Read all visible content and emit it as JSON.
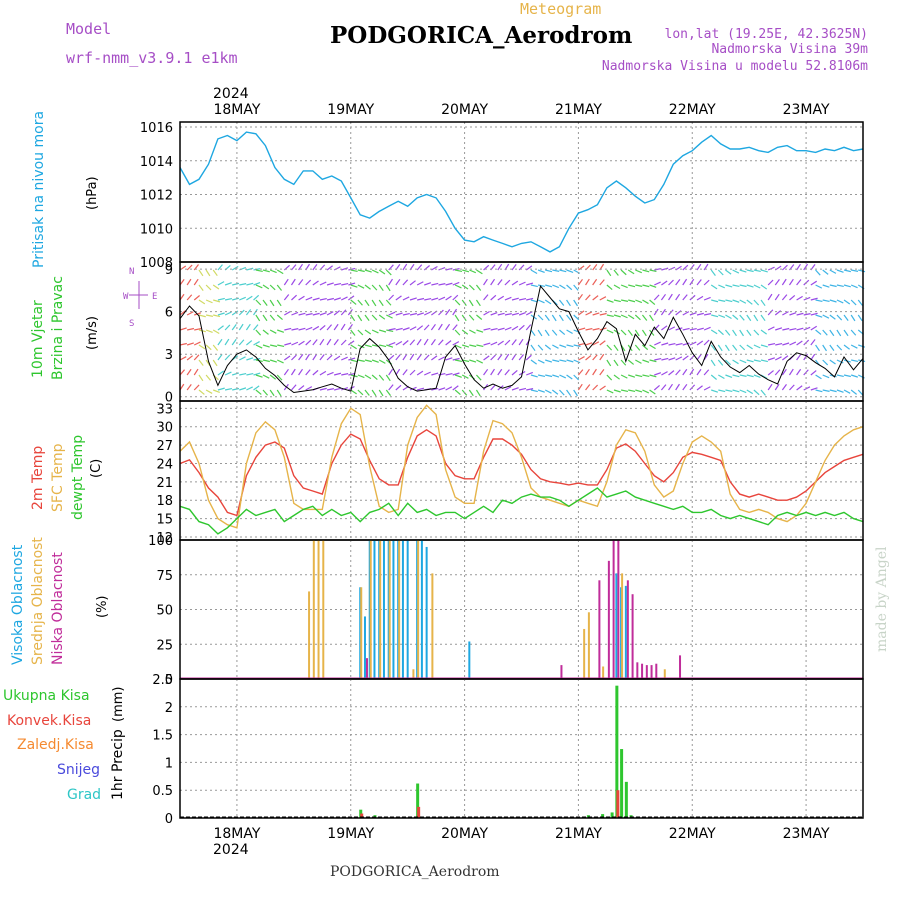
{
  "header": {
    "model_label": "Model",
    "model_name": "wrf-nmm_v3.9.1 e1km",
    "meteogram_label": "Meteogram",
    "station": "PODGORICA_Aerodrom",
    "lonlat": "lon,lat (19.25E, 42.3625N)",
    "altitude": "Nadmorska Visina 39m",
    "model_altitude": "Nadmorska Visina u modelu 52.8106m"
  },
  "footer": {
    "station": "PODGORICA_Aerodrom",
    "credit": "made by Angel"
  },
  "colors": {
    "pressure": "#1ea7e1",
    "temp2m": "#e8453c",
    "sfc": "#e6b44a",
    "dew": "#2ec62e",
    "high_cloud": "#1ea7e1",
    "mid_cloud": "#e6b44a",
    "low_cloud": "#c02d9a",
    "total_rain": "#2ec62e",
    "conv_rain": "#e8453c",
    "freezing": "#f58a30",
    "snow": "#4a4adc",
    "graupel": "#2ec6c6",
    "wind_purple": "#8a2be2"
  },
  "chart_data": [
    {
      "type": "line",
      "panel": "pressure",
      "ylabel": "Pritisak na nivou mora",
      "unit": "(hPa)",
      "ylim": [
        1008,
        1016.3
      ],
      "yticks": [
        1008,
        1010,
        1012,
        1014,
        1016
      ],
      "series": [
        {
          "color_key": "pressure",
          "x": [
            0,
            2,
            4,
            6,
            8,
            10,
            12,
            14,
            16,
            18,
            20,
            22,
            24,
            26,
            28,
            30,
            32,
            34,
            36,
            38,
            40,
            42,
            44,
            46,
            48,
            50,
            52,
            54,
            56,
            58,
            60,
            62,
            64,
            66,
            68,
            70,
            72,
            74,
            76,
            78,
            80,
            82,
            84,
            86,
            88,
            90,
            92,
            94,
            96,
            98,
            100,
            102,
            104,
            106,
            108,
            110,
            112,
            114,
            116,
            118,
            120,
            122,
            124,
            126,
            128,
            130,
            132,
            134,
            136,
            138,
            140,
            142,
            144
          ],
          "values": [
            1013.6,
            1012.6,
            1012.9,
            1013.8,
            1015.3,
            1015.5,
            1015.2,
            1015.7,
            1015.6,
            1014.9,
            1013.6,
            1012.9,
            1012.6,
            1013.4,
            1013.4,
            1012.9,
            1013.1,
            1012.8,
            1011.8,
            1010.8,
            1010.6,
            1011.0,
            1011.3,
            1011.6,
            1011.3,
            1011.8,
            1012.0,
            1011.8,
            1011.0,
            1010.0,
            1009.3,
            1009.2,
            1009.5,
            1009.3,
            1009.1,
            1008.9,
            1009.1,
            1009.2,
            1008.9,
            1008.6,
            1008.9,
            1010.0,
            1010.9,
            1011.1,
            1011.4,
            1012.4,
            1012.8,
            1012.4,
            1011.9,
            1011.5,
            1011.7,
            1012.6,
            1013.8,
            1014.3,
            1014.6,
            1015.1,
            1015.5,
            1015.0,
            1014.7,
            1014.7,
            1014.8,
            1014.6,
            1014.5,
            1014.8,
            1014.9,
            1014.6,
            1014.6,
            1014.5,
            1014.7,
            1014.6,
            1014.8,
            1014.6,
            1014.7
          ]
        }
      ]
    },
    {
      "type": "line",
      "panel": "wind",
      "ylabel": "10m Vjetar Brzina i Pravac",
      "unit": "(m/s)",
      "compass": {
        "n": "N",
        "s": "S",
        "w": "W",
        "e": "E"
      },
      "ylim": [
        -0.3,
        9.5
      ],
      "yticks": [
        0,
        3,
        6,
        9
      ],
      "series": [
        {
          "name": "speed",
          "x": [
            0,
            2,
            4,
            6,
            8,
            10,
            12,
            14,
            16,
            18,
            20,
            22,
            24,
            26,
            28,
            30,
            32,
            34,
            36,
            38,
            40,
            42,
            44,
            46,
            48,
            50,
            52,
            54,
            56,
            58,
            60,
            62,
            64,
            66,
            68,
            70,
            72,
            74,
            76,
            78,
            80,
            82,
            84,
            86,
            88,
            90,
            92,
            94,
            96,
            98,
            100,
            102,
            104,
            106,
            108,
            110,
            112,
            114,
            116,
            118,
            120,
            122,
            124,
            126,
            128,
            130,
            132,
            134,
            136,
            138,
            140,
            142,
            144
          ],
          "values": [
            5.5,
            6.4,
            5.7,
            2.5,
            0.8,
            2.2,
            3.0,
            3.3,
            2.8,
            2.0,
            1.5,
            0.8,
            0.3,
            0.4,
            0.5,
            0.7,
            0.9,
            0.6,
            0.4,
            3.4,
            4.1,
            3.5,
            2.6,
            1.3,
            0.7,
            0.4,
            0.5,
            0.6,
            2.8,
            3.6,
            2.3,
            1.2,
            0.6,
            0.9,
            0.6,
            0.8,
            1.4,
            4.7,
            7.8,
            7.0,
            6.2,
            6.0,
            4.6,
            3.3,
            4.1,
            5.3,
            4.8,
            2.5,
            4.4,
            3.6,
            4.9,
            4.1,
            5.6,
            4.4,
            3.1,
            2.2,
            3.9,
            2.8,
            2.1,
            1.7,
            2.2,
            1.6,
            1.2,
            0.9,
            2.5,
            3.1,
            2.9,
            2.4,
            2.0,
            1.4,
            2.8,
            1.9,
            2.7
          ]
        }
      ]
    },
    {
      "type": "line",
      "panel": "temperature",
      "ylabel": [
        "2m Temp",
        "SFC Temp",
        "dewpt Temp"
      ],
      "unit": "(C)",
      "ylim": [
        11.5,
        34.2
      ],
      "yticks": [
        12,
        15,
        18,
        21,
        24,
        27,
        30,
        33
      ],
      "series": [
        {
          "name": "2m Temp",
          "color_key": "temp2m",
          "x": [
            0,
            2,
            4,
            6,
            8,
            10,
            12,
            14,
            16,
            18,
            20,
            22,
            24,
            26,
            28,
            30,
            32,
            34,
            36,
            38,
            40,
            42,
            44,
            46,
            48,
            50,
            52,
            54,
            56,
            58,
            60,
            62,
            64,
            66,
            68,
            70,
            72,
            74,
            76,
            78,
            80,
            82,
            84,
            86,
            88,
            90,
            92,
            94,
            96,
            98,
            100,
            102,
            104,
            106,
            108,
            110,
            112,
            114,
            116,
            118,
            120,
            122,
            124,
            126,
            128,
            130,
            132,
            134,
            136,
            138,
            140,
            142,
            144
          ],
          "values": [
            24.0,
            24.6,
            22.5,
            20.0,
            18.5,
            16.0,
            15.5,
            22.0,
            25.0,
            27.0,
            27.5,
            26.5,
            22.0,
            20.0,
            19.5,
            19.0,
            24.0,
            27.0,
            28.8,
            28.0,
            24.5,
            21.5,
            20.5,
            20.5,
            25.0,
            28.5,
            29.5,
            28.5,
            24.0,
            22.0,
            21.5,
            21.5,
            25.0,
            28.0,
            28.0,
            27.0,
            25.5,
            23.0,
            21.5,
            21.0,
            20.8,
            20.5,
            20.8,
            20.5,
            20.5,
            23.0,
            26.5,
            27.2,
            26.0,
            24.0,
            22.0,
            21.0,
            22.5,
            25.0,
            25.8,
            25.5,
            25.0,
            24.5,
            21.0,
            19.0,
            18.5,
            19.0,
            18.5,
            18.0,
            18.0,
            18.5,
            19.5,
            21.0,
            22.5,
            23.5,
            24.5,
            25.0,
            25.5
          ]
        },
        {
          "name": "SFC Temp",
          "color_key": "sfc",
          "x": [
            0,
            2,
            4,
            6,
            8,
            10,
            12,
            14,
            16,
            18,
            20,
            22,
            24,
            26,
            28,
            30,
            32,
            34,
            36,
            38,
            40,
            42,
            44,
            46,
            48,
            50,
            52,
            54,
            56,
            58,
            60,
            62,
            64,
            66,
            68,
            70,
            72,
            74,
            76,
            78,
            80,
            82,
            84,
            86,
            88,
            90,
            92,
            94,
            96,
            98,
            100,
            102,
            104,
            106,
            108,
            110,
            112,
            114,
            116,
            118,
            120,
            122,
            124,
            126,
            128,
            130,
            132,
            134,
            136,
            138,
            140,
            142,
            144
          ],
          "values": [
            26.0,
            27.5,
            24.0,
            18.0,
            15.0,
            14.0,
            13.5,
            24.0,
            29.0,
            30.8,
            29.5,
            25.0,
            17.5,
            16.5,
            16.5,
            16.5,
            25.0,
            30.5,
            33.0,
            32.0,
            23.5,
            17.0,
            16.0,
            16.5,
            27.0,
            31.5,
            33.5,
            32.0,
            23.0,
            18.5,
            17.5,
            17.5,
            26.0,
            31.0,
            30.5,
            29.0,
            25.0,
            20.0,
            18.5,
            18.0,
            17.5,
            17.0,
            18.0,
            17.5,
            17.0,
            21.0,
            27.0,
            29.5,
            29.0,
            26.0,
            20.5,
            18.5,
            19.5,
            24.0,
            27.5,
            28.5,
            27.5,
            26.0,
            19.0,
            16.5,
            16.0,
            16.5,
            16.0,
            15.0,
            14.5,
            15.5,
            17.5,
            21.0,
            24.5,
            27.0,
            28.5,
            29.5,
            30.0
          ]
        },
        {
          "name": "dewpt Temp",
          "color_key": "dew",
          "x": [
            0,
            2,
            4,
            6,
            8,
            10,
            12,
            14,
            16,
            18,
            20,
            22,
            24,
            26,
            28,
            30,
            32,
            34,
            36,
            38,
            40,
            42,
            44,
            46,
            48,
            50,
            52,
            54,
            56,
            58,
            60,
            62,
            64,
            66,
            68,
            70,
            72,
            74,
            76,
            78,
            80,
            82,
            84,
            86,
            88,
            90,
            92,
            94,
            96,
            98,
            100,
            102,
            104,
            106,
            108,
            110,
            112,
            114,
            116,
            118,
            120,
            122,
            124,
            126,
            128,
            130,
            132,
            134,
            136,
            138,
            140,
            142,
            144
          ],
          "values": [
            17.0,
            16.5,
            14.5,
            14.0,
            12.5,
            13.5,
            15.0,
            16.5,
            15.5,
            16.0,
            16.5,
            14.5,
            15.5,
            16.5,
            17.0,
            15.5,
            16.5,
            15.5,
            16.0,
            14.5,
            16.0,
            16.5,
            17.5,
            15.5,
            17.5,
            16.0,
            16.5,
            15.5,
            16.0,
            16.0,
            15.0,
            16.0,
            17.0,
            16.0,
            18.0,
            17.5,
            18.5,
            19.0,
            18.5,
            18.5,
            18.0,
            17.0,
            18.0,
            19.0,
            20.0,
            18.5,
            19.0,
            19.5,
            18.5,
            18.0,
            17.5,
            17.0,
            16.5,
            17.0,
            16.0,
            16.0,
            16.5,
            15.5,
            15.0,
            15.5,
            15.0,
            14.5,
            14.0,
            15.5,
            16.0,
            15.5,
            16.0,
            15.5,
            16.0,
            15.5,
            16.0,
            15.0,
            14.5
          ]
        }
      ]
    },
    {
      "type": "bar",
      "panel": "cloud",
      "ylabel": [
        "Visoka Oblacnost",
        "Srednja Oblacnost",
        "Niska Oblacnost"
      ],
      "unit": "(%)",
      "ylim": [
        0,
        100
      ],
      "yticks": [
        0,
        25,
        50,
        75,
        100
      ],
      "series": [
        {
          "name": "Visoka Oblacnost",
          "color_key": "high_cloud",
          "x": [
            38,
            39,
            40,
            41,
            42,
            43,
            44,
            45,
            46,
            47,
            48,
            50,
            51,
            52,
            61,
            92,
            93,
            94
          ],
          "values": [
            66,
            45,
            100,
            100,
            100,
            100,
            100,
            100,
            100,
            100,
            100,
            100,
            100,
            95,
            27,
            76,
            66,
            67
          ]
        },
        {
          "name": "Srednja Oblacnost",
          "color_key": "mid_cloud",
          "x": [
            27,
            28,
            29,
            30,
            38,
            40,
            42,
            44,
            46,
            49,
            50,
            53,
            85,
            86,
            89,
            93,
            102
          ],
          "values": [
            63,
            100,
            100,
            100,
            66,
            100,
            100,
            100,
            100,
            7,
            100,
            76,
            36,
            48,
            9,
            76,
            7
          ]
        },
        {
          "name": "Niska Oblacnost",
          "color_key": "low_cloud",
          "x": [
            39,
            88,
            90,
            91,
            92,
            94,
            95,
            96,
            97,
            98,
            99,
            100,
            105,
            110,
            80
          ],
          "values": [
            15,
            71,
            85,
            100,
            100,
            71,
            61,
            12,
            11,
            10,
            10,
            11,
            17,
            1,
            10
          ]
        }
      ]
    },
    {
      "type": "bar",
      "panel": "precipitation",
      "ylabel": "1hr Precip",
      "unit": "(mm)",
      "ylim": [
        0,
        2.5
      ],
      "yticks": [
        0,
        0.5,
        1,
        1.5,
        2,
        2.5
      ],
      "legend": [
        "Ukupna Kisa",
        "Konvek.Kisa",
        "Zaledj.Kisa",
        "Snijeg",
        "Grad"
      ],
      "series": [
        {
          "name": "Ukupna Kisa",
          "color_key": "total_rain",
          "x": [
            38,
            41,
            50,
            86,
            89,
            91,
            92,
            93,
            94,
            95
          ],
          "values": [
            0.15,
            0.05,
            0.62,
            0.05,
            0.07,
            0.1,
            2.38,
            1.24,
            0.65,
            0.05
          ]
        },
        {
          "name": "Konvek.Kisa",
          "color_key": "conv_rain",
          "x": [
            38,
            50,
            92
          ],
          "values": [
            0.08,
            0.2,
            0.5
          ]
        }
      ]
    }
  ],
  "axes": {
    "top_year": "2024",
    "bottom_year": "2024",
    "days": [
      "18MAY",
      "19MAY",
      "20MAY",
      "21MAY",
      "22MAY",
      "23MAY"
    ],
    "day_hours": [
      12,
      36,
      60,
      84,
      108,
      132
    ]
  }
}
